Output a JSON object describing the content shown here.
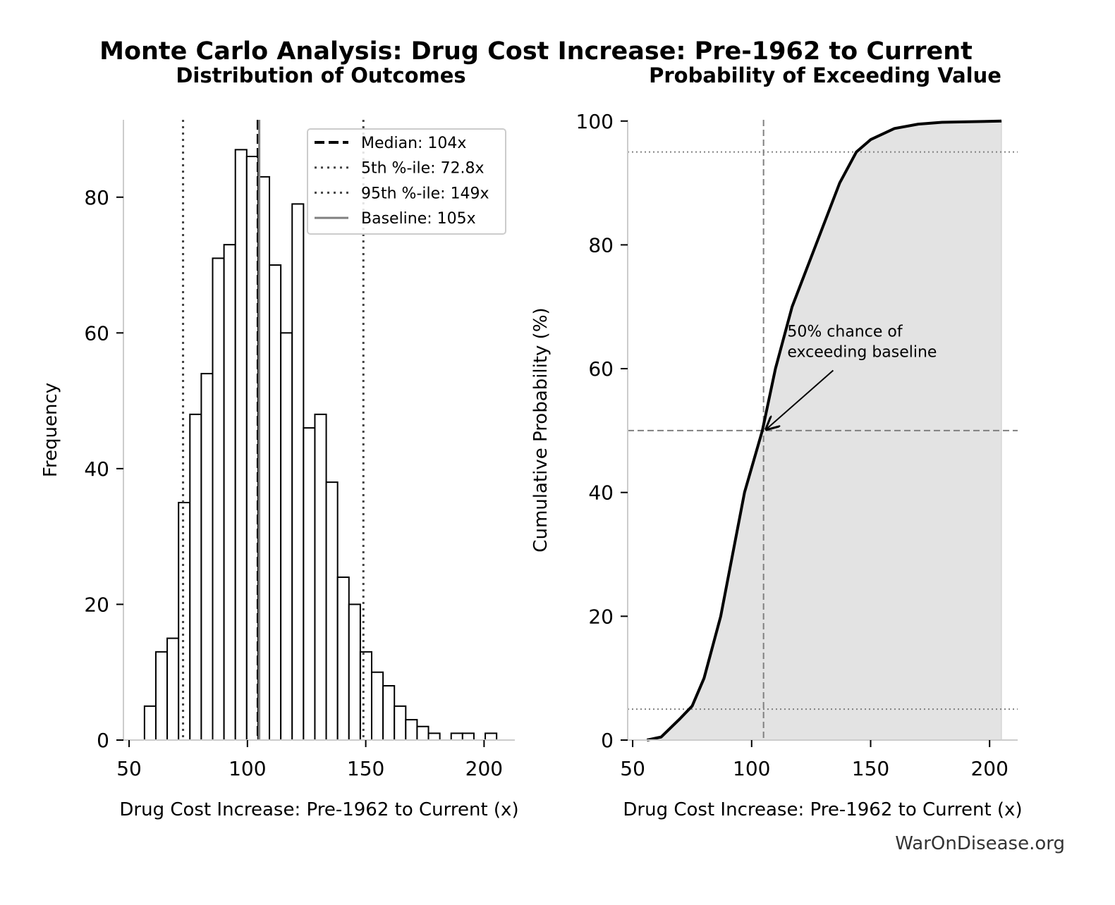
{
  "title": "Monte Carlo Analysis: Drug Cost Increase: Pre-1962 to Current",
  "footer": "WarOnDisease.org",
  "chart_data": [
    {
      "type": "histogram",
      "title": "Distribution of Outcomes",
      "xlabel": "Drug Cost Increase: Pre-1962 to Current (x)",
      "ylabel": "Frequency",
      "bins": [
        56.5,
        61.3,
        66.1,
        70.9,
        75.7,
        80.5,
        85.3,
        90.1,
        94.9,
        99.7,
        104.5,
        109.3,
        114.1,
        118.9,
        123.7,
        128.5,
        133.3,
        138.1,
        142.9,
        147.7,
        152.5,
        157.3,
        162.1,
        166.9,
        171.7,
        176.5,
        181.3,
        186.1,
        190.9,
        195.7,
        200.5,
        205.3
      ],
      "values": [
        5,
        13,
        15,
        35,
        48,
        54,
        71,
        73,
        87,
        86,
        83,
        70,
        60,
        79,
        46,
        48,
        38,
        24,
        20,
        13,
        10,
        8,
        5,
        3,
        2,
        1,
        0,
        1,
        1,
        0,
        1
      ],
      "color": "#ffffff",
      "edgecolor": "#000000",
      "xlim": [
        47.6,
        213
      ],
      "ylim": [
        0,
        91.4
      ],
      "xticks": [
        50,
        100,
        150,
        200
      ],
      "yticks": [
        0,
        20,
        40,
        60,
        80
      ],
      "vlines": [
        {
          "name": "Median: 104x",
          "value": 104.5,
          "color": "#000000",
          "style": "dashed"
        },
        {
          "name": "5th %-ile: 72.8x",
          "value": 72.8,
          "color": "#444444",
          "style": "dotted"
        },
        {
          "name": "95th %-ile: 149x",
          "value": 149,
          "color": "#444444",
          "style": "dotted"
        },
        {
          "name": "Baseline: 105x",
          "value": 105,
          "color": "#808080",
          "style": "solid"
        }
      ],
      "legend": "upper right"
    },
    {
      "type": "cdf",
      "title": "Probability of Exceeding Value",
      "xlabel": "Drug Cost Increase: Pre-1962 to Current (x)",
      "ylabel": "Cumulative Probability (%)",
      "x": [
        56,
        62,
        66,
        70,
        75,
        80,
        87,
        92,
        97,
        104.5,
        110,
        117,
        127,
        137,
        144,
        150,
        160,
        170,
        180,
        205
      ],
      "y": [
        0,
        0.5,
        2,
        3.5,
        5.5,
        10,
        20,
        30,
        40,
        50,
        60,
        70,
        80,
        90,
        95,
        97,
        98.8,
        99.5,
        99.8,
        100
      ],
      "color": "#000000",
      "fill": "#e3e3e3",
      "xlim": [
        47.9,
        211.8
      ],
      "ylim": [
        0,
        100.2
      ],
      "xticks": [
        50,
        100,
        150,
        200
      ],
      "yticks": [
        0,
        20,
        40,
        60,
        80,
        100
      ],
      "hlines": [
        {
          "value": 95,
          "style": "dotted"
        },
        {
          "value": 5,
          "style": "dotted"
        },
        {
          "value": 50,
          "style": "dashed"
        }
      ],
      "vlines": [
        {
          "value": 105,
          "style": "dashed"
        }
      ],
      "annotation": {
        "text": [
          "50% chance of",
          "exceeding baseline"
        ],
        "x": 115,
        "y": 62,
        "xy": [
          105,
          50
        ]
      }
    }
  ]
}
